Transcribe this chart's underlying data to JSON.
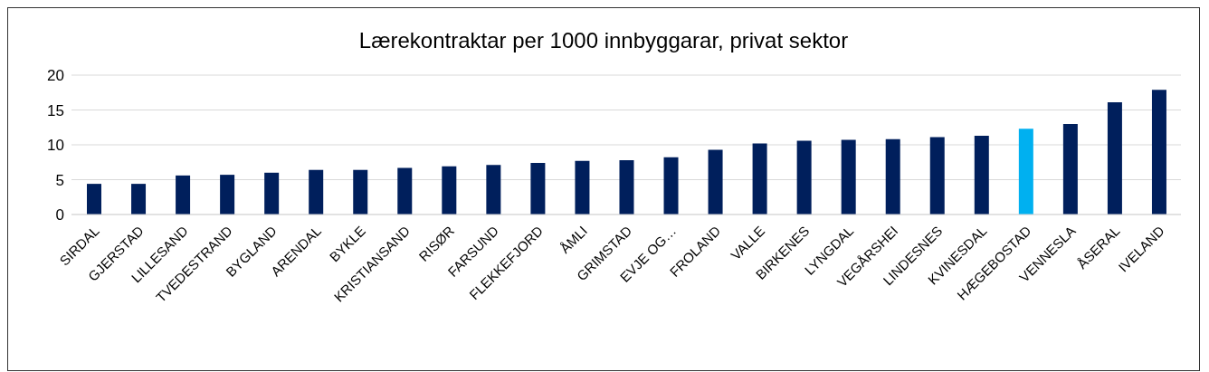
{
  "chart_data": {
    "type": "bar",
    "title": "Lærekontraktar per 1000 innbyggarar, privat sektor",
    "categories": [
      "SIRDAL",
      "GJERSTAD",
      "LILLESAND",
      "TVEDESTRAND",
      "BYGLAND",
      "ARENDAL",
      "BYKLE",
      "KRISTIANSAND",
      "RISØR",
      "FARSUND",
      "FLEKKEFJORD",
      "ÅMLI",
      "GRIMSTAD",
      "EVJE OG…",
      "FROLAND",
      "VALLE",
      "BIRKENES",
      "LYNGDAL",
      "VEGÅRSHEI",
      "LINDESNES",
      "KVINESDAL",
      "HÆGEBOSTAD",
      "VENNESLA",
      "ÅSERAL",
      "IVELAND"
    ],
    "values": [
      4.4,
      4.4,
      5.6,
      5.7,
      6.0,
      6.4,
      6.4,
      6.7,
      6.9,
      7.1,
      7.4,
      7.7,
      7.8,
      8.2,
      9.3,
      10.2,
      10.6,
      10.7,
      10.8,
      11.1,
      11.3,
      12.3,
      13.0,
      16.1,
      17.9
    ],
    "colors": [
      "#001f5c",
      "#001f5c",
      "#001f5c",
      "#001f5c",
      "#001f5c",
      "#001f5c",
      "#001f5c",
      "#001f5c",
      "#001f5c",
      "#001f5c",
      "#001f5c",
      "#001f5c",
      "#001f5c",
      "#001f5c",
      "#001f5c",
      "#001f5c",
      "#001f5c",
      "#001f5c",
      "#001f5c",
      "#001f5c",
      "#001f5c",
      "#00b0f0",
      "#001f5c",
      "#001f5c",
      "#001f5c"
    ],
    "ylim": [
      0,
      20
    ],
    "yticks": [
      0,
      5,
      10,
      15,
      20
    ],
    "grid": "y"
  }
}
